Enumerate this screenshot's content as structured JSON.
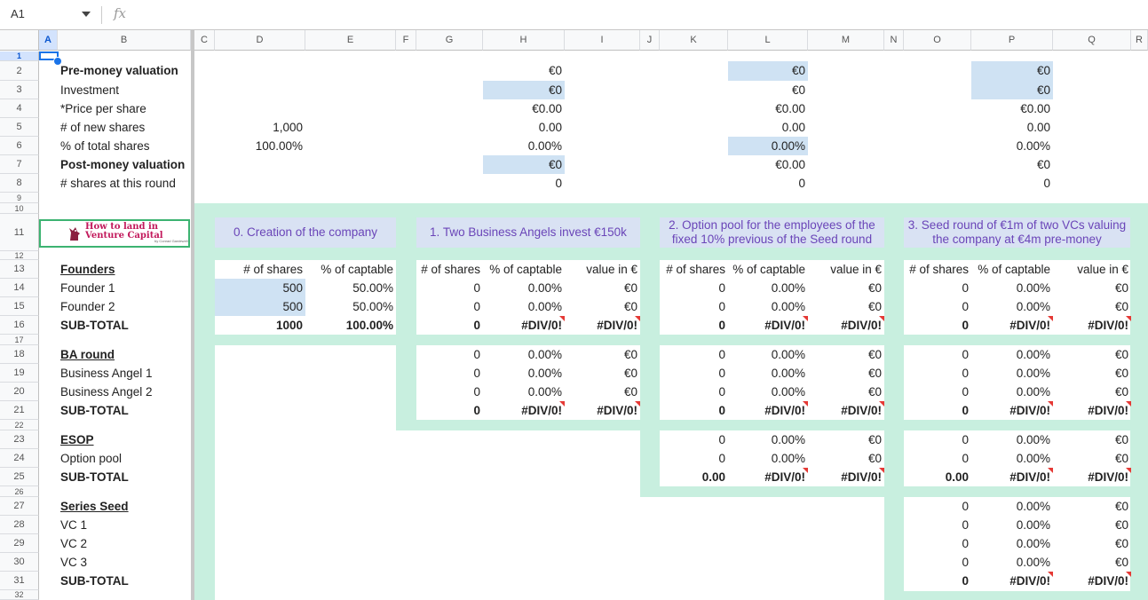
{
  "formula_bar": {
    "name_box": "A1",
    "fx": "fx"
  },
  "columns": [
    "A",
    "B",
    "C",
    "D",
    "E",
    "F",
    "G",
    "H",
    "I",
    "J",
    "K",
    "L",
    "M",
    "N",
    "O",
    "P",
    "Q",
    "R"
  ],
  "rows": [
    "1",
    "2",
    "3",
    "4",
    "5",
    "6",
    "7",
    "8",
    "9",
    "10",
    "11",
    "12",
    "13",
    "14",
    "15",
    "16",
    "17",
    "18",
    "19",
    "20",
    "21",
    "22",
    "23",
    "24",
    "25",
    "26",
    "27",
    "28",
    "29",
    "30",
    "31",
    "32"
  ],
  "top": {
    "labels": [
      "Pre-money valuation",
      "Investment",
      "*Price per share",
      "# of new shares",
      "% of total shares",
      "Post-money valuation",
      "# shares at this round"
    ],
    "D": [
      "",
      "",
      "",
      "1,000",
      "100.00%",
      "",
      ""
    ],
    "H": [
      "€0",
      "€0",
      "€0.00",
      "0.00",
      "0.00%",
      "€0",
      "0"
    ],
    "L": [
      "€0",
      "€0",
      "€0.00",
      "0.00",
      "0.00%",
      "€0.00",
      "0"
    ],
    "P": [
      "€0",
      "€0",
      "€0.00",
      "0.00",
      "0.00%",
      "€0",
      "0"
    ]
  },
  "logo": {
    "line1": "How to land in",
    "line2": "Venture Capital",
    "byline": "by Conrad Gardewell"
  },
  "stages": [
    "0. Creation of the company",
    "1. Two Business Angels invest €150k",
    "2. Option pool for the employees of the fixed 10% previous of the Seed round",
    "3. Seed round of €1m of two VCs valuing the company at €4m pre-money"
  ],
  "headers": {
    "shares": "# of shares",
    "captable": "% of captable",
    "value": "value in €"
  },
  "sections": {
    "founders": {
      "title": "Founders",
      "rows": [
        "Founder 1",
        "Founder 2"
      ],
      "subtotal": "SUB-TOTAL"
    },
    "ba": {
      "title": "BA round",
      "rows": [
        "Business Angel 1",
        "Business Angel 2"
      ],
      "subtotal": "SUB-TOTAL"
    },
    "esop": {
      "title": "ESOP",
      "rows": [
        "Option pool"
      ],
      "subtotal": "SUB-TOTAL"
    },
    "seed": {
      "title": "Series Seed",
      "rows": [
        "VC 1",
        "VC 2",
        "VC 3"
      ],
      "subtotal": "SUB-TOTAL"
    }
  },
  "vals": {
    "f1_shares": "500",
    "f1_pct": "50.00%",
    "f2_shares": "500",
    "f2_pct": "50.00%",
    "f_total_shares": "1000",
    "f_total_pct": "100.00%",
    "zero": "0",
    "pct0": "0.00%",
    "eur0": "€0",
    "div0": "#DIV/0!",
    "dec0": "0.00"
  }
}
